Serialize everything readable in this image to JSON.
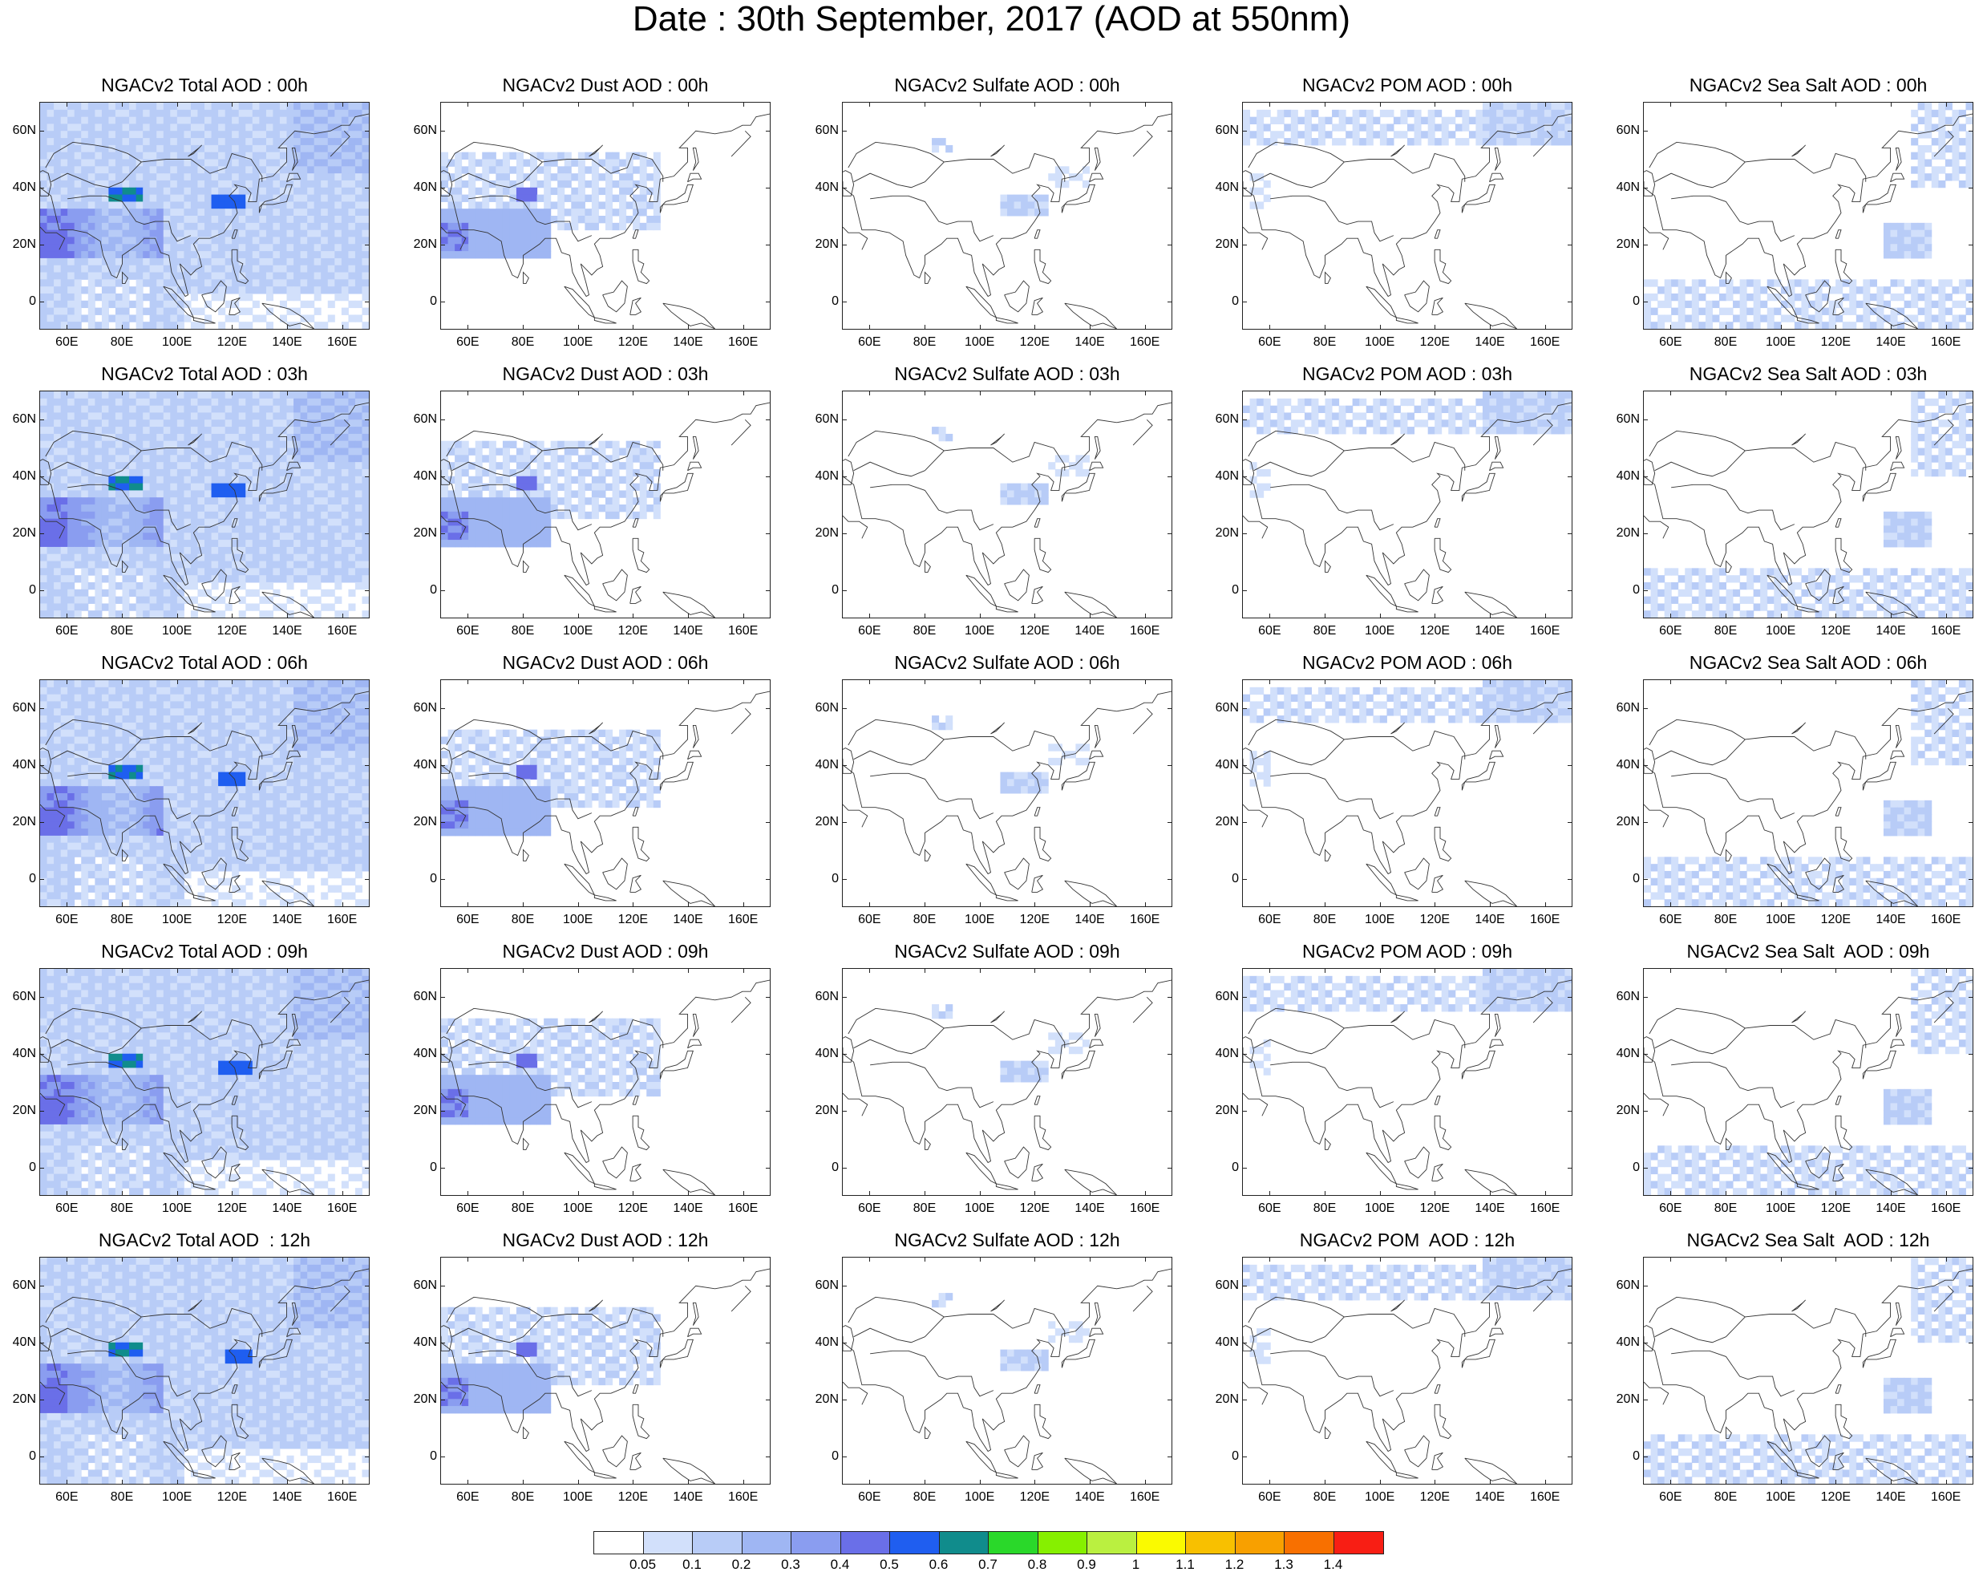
{
  "title": "Date : 30th September, 2017 (AOD at 550nm)",
  "lat_ticks": [
    "60N",
    "40N",
    "20N",
    "0"
  ],
  "lon_ticks": [
    "60E",
    "80E",
    "100E",
    "120E",
    "140E",
    "160E"
  ],
  "rows": [
    [
      "NGACv2 Total AOD : 00h",
      "NGACv2 Dust AOD : 00h",
      "NGACv2 Sulfate AOD : 00h",
      "NGACv2 POM AOD : 00h",
      "NGACv2 Sea Salt AOD : 00h"
    ],
    [
      "NGACv2 Total AOD : 03h",
      "NGACv2 Dust AOD : 03h",
      "NGACv2 Sulfate AOD : 03h",
      "NGACv2 POM AOD : 03h",
      "NGACv2 Sea Salt AOD : 03h"
    ],
    [
      "NGACv2 Total AOD : 06h",
      "NGACv2 Dust AOD : 06h",
      "NGACv2 Sulfate AOD : 06h",
      "NGACv2 POM AOD : 06h",
      "NGACv2 Sea Salt AOD : 06h"
    ],
    [
      "NGACv2 Total AOD : 09h",
      "NGACv2 Dust AOD : 09h",
      "NGACv2 Sulfate AOD : 09h",
      "NGACv2 POM AOD : 09h",
      "NGACv2 Sea Salt  AOD : 09h"
    ],
    [
      "NGACv2 Total AOD  : 12h",
      "NGACv2 Dust AOD : 12h",
      "NGACv2 Sulfate AOD : 12h",
      "NGACv2 POM  AOD : 12h",
      "NGACv2 Sea Salt  AOD : 12h"
    ]
  ],
  "colorbar": {
    "labels": [
      "0.05",
      "0.1",
      "0.2",
      "0.3",
      "0.4",
      "0.5",
      "0.6",
      "0.7",
      "0.8",
      "0.9",
      "1",
      "1.1",
      "1.2",
      "1.3",
      "1.4"
    ],
    "colors": [
      "#ffffff",
      "#d2e0fb",
      "#b8ccf7",
      "#9fb6f3",
      "#8a9df0",
      "#6a6fe8",
      "#1f5ef0",
      "#108c8c",
      "#2ad82a",
      "#86f000",
      "#baf040",
      "#fafa00",
      "#f8c000",
      "#f8a000",
      "#f87000",
      "#f81e14"
    ]
  }
}
